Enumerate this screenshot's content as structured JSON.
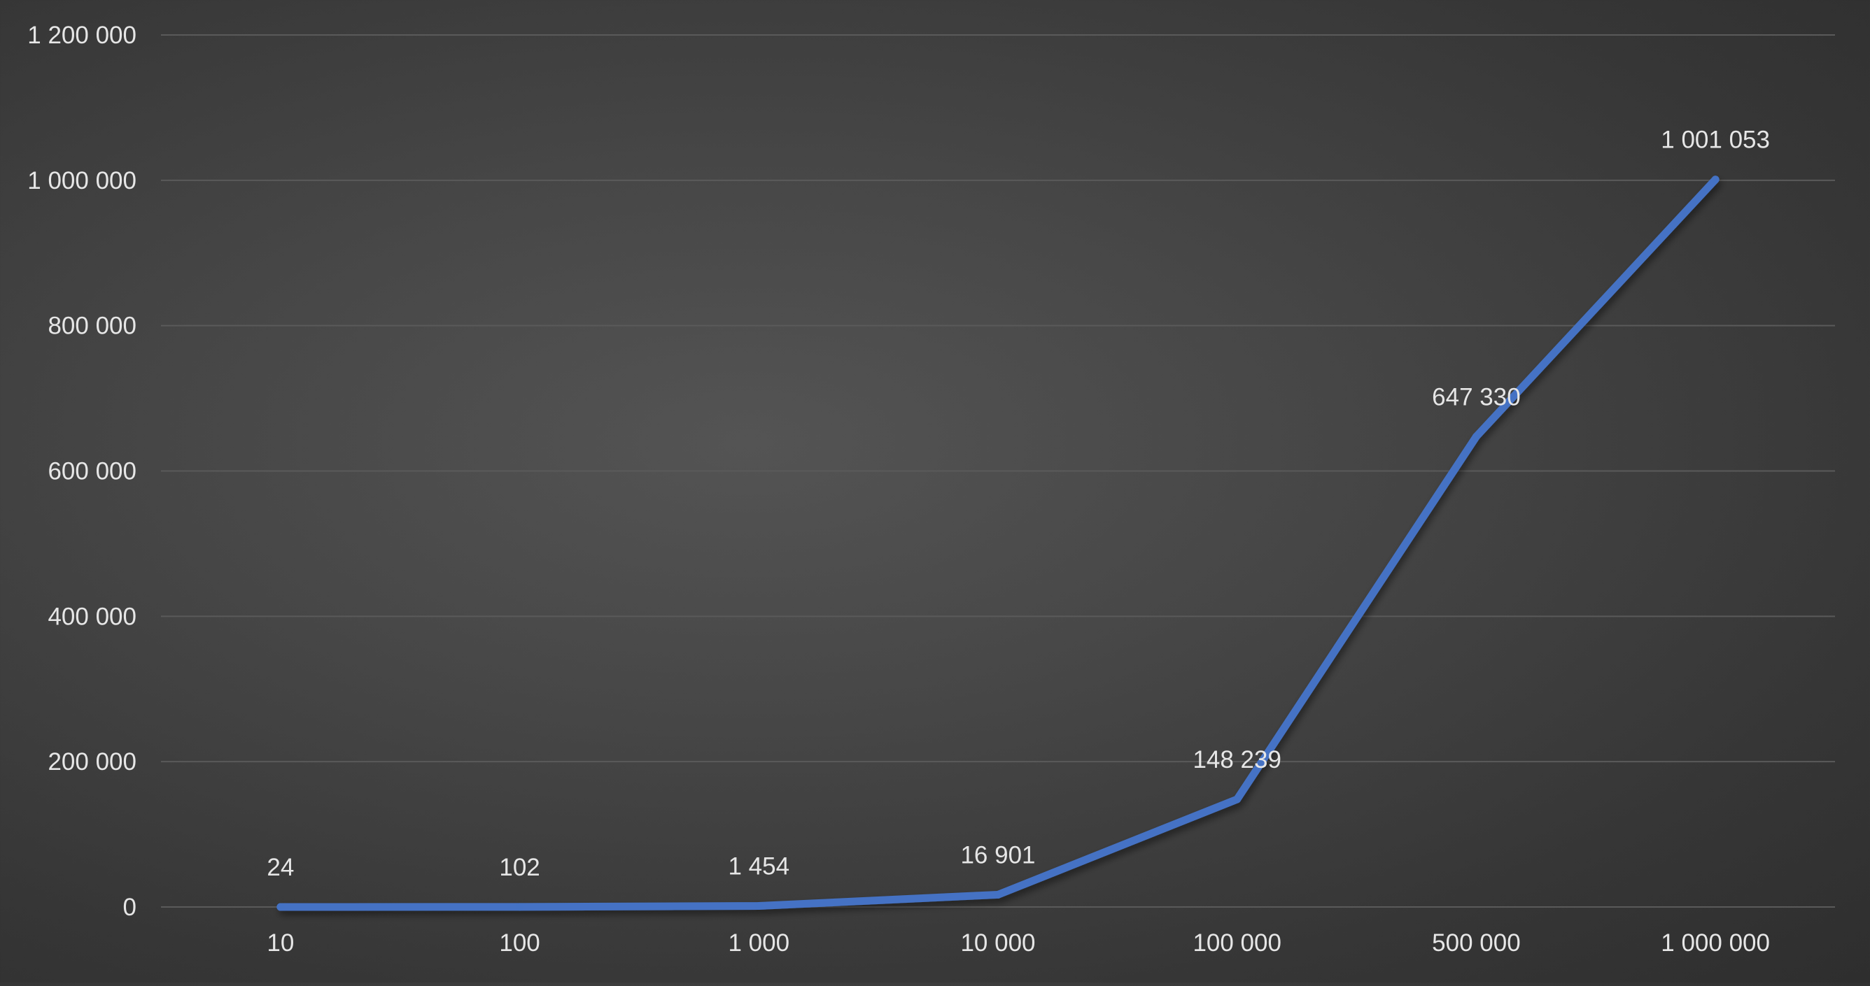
{
  "chart_data": {
    "type": "line",
    "title": "",
    "xlabel": "",
    "ylabel": "",
    "categories": [
      "10",
      "100",
      "1 000",
      "10 000",
      "100 000",
      "500 000",
      "1 000 000"
    ],
    "series": [
      {
        "values": [
          24,
          102,
          1454,
          16901,
          148239,
          647330,
          1001053
        ],
        "value_labels": [
          "24",
          "102",
          "1 454",
          "16 901",
          "148 239",
          "647 330",
          "1 001 053"
        ],
        "color": "#4472C4"
      }
    ],
    "ylim": [
      0,
      1200000
    ],
    "yticks": [
      {
        "value": 0,
        "label": "0"
      },
      {
        "value": 200000,
        "label": "200 000"
      },
      {
        "value": 400000,
        "label": "400 000"
      },
      {
        "value": 600000,
        "label": "600 000"
      },
      {
        "value": 800000,
        "label": "800 000"
      },
      {
        "value": 1000000,
        "label": "1 000 000"
      },
      {
        "value": 1200000,
        "label": "1 200 000"
      }
    ],
    "grid": true,
    "legend": "none",
    "background_color": "#404040",
    "text_color": "#e6e6e6",
    "gridline_color": "#5a5a5a"
  }
}
